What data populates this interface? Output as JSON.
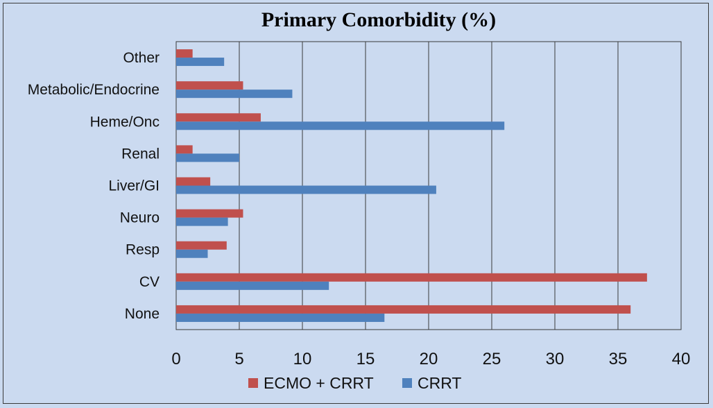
{
  "chart_data": {
    "type": "bar",
    "orientation": "horizontal",
    "title": "Primary Comorbidity (%)",
    "categories": [
      "None",
      "CV",
      "Resp",
      "Neuro",
      "Liver/GI",
      "Renal",
      "Heme/Onc",
      "Metabolic/Endocrine",
      "Other"
    ],
    "series": [
      {
        "name": "ECMO + CRRT",
        "color": "#c0504d",
        "values": [
          36.0,
          37.3,
          4.0,
          5.3,
          2.7,
          1.3,
          6.7,
          5.3,
          1.3
        ]
      },
      {
        "name": "CRRT",
        "color": "#4f81bd",
        "values": [
          16.5,
          12.1,
          2.5,
          4.1,
          20.6,
          5.0,
          26.0,
          9.2,
          3.8
        ]
      }
    ],
    "xlim": [
      0,
      40
    ],
    "xticks": [
      0,
      5,
      10,
      15,
      20,
      25,
      30,
      35,
      40
    ],
    "grid": "vertical",
    "legend": "bottom"
  }
}
